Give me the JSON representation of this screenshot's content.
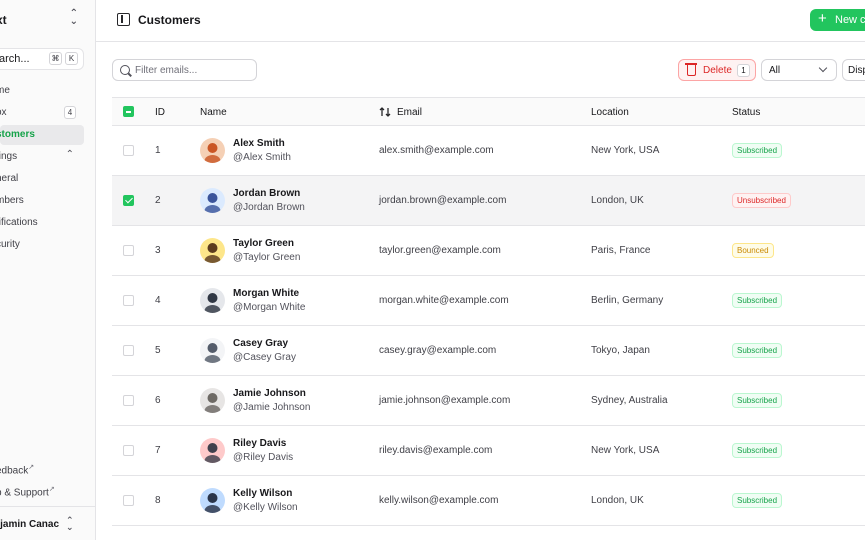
{
  "sidebar": {
    "team": "xt",
    "search": {
      "label": "arch...",
      "keys": [
        "⌘",
        "K"
      ]
    },
    "items": [
      {
        "label": "me"
      },
      {
        "label": "ox",
        "badge": "4"
      },
      {
        "label": "stomers"
      },
      {
        "label": "tings"
      },
      {
        "label": "neral"
      },
      {
        "label": "mbers"
      },
      {
        "label": "tifications"
      },
      {
        "label": "curity"
      }
    ],
    "footer": [
      {
        "label": "edback"
      },
      {
        "label": "p & Support"
      }
    ],
    "user": "njamin Canac"
  },
  "header": {
    "title": "Customers",
    "new_button": "New cu"
  },
  "toolbar": {
    "filter_placeholder": "Filter emails...",
    "delete_label": "Delete",
    "delete_count": "1",
    "select_value": "All",
    "display_label": "Disp"
  },
  "table": {
    "columns": [
      "ID",
      "Name",
      "Email",
      "Location",
      "Status"
    ],
    "rows": [
      {
        "id": "1",
        "name": "Alex Smith",
        "username": "@Alex Smith",
        "email": "alex.smith@example.com",
        "location": "New York, USA",
        "status": "Subscribed",
        "selected": false
      },
      {
        "id": "2",
        "name": "Jordan Brown",
        "username": "@Jordan Brown",
        "email": "jordan.brown@example.com",
        "location": "London, UK",
        "status": "Unsubscribed",
        "selected": true
      },
      {
        "id": "3",
        "name": "Taylor Green",
        "username": "@Taylor Green",
        "email": "taylor.green@example.com",
        "location": "Paris, France",
        "status": "Bounced",
        "selected": false
      },
      {
        "id": "4",
        "name": "Morgan White",
        "username": "@Morgan White",
        "email": "morgan.white@example.com",
        "location": "Berlin, Germany",
        "status": "Subscribed",
        "selected": false
      },
      {
        "id": "5",
        "name": "Casey Gray",
        "username": "@Casey Gray",
        "email": "casey.gray@example.com",
        "location": "Tokyo, Japan",
        "status": "Subscribed",
        "selected": false
      },
      {
        "id": "6",
        "name": "Jamie Johnson",
        "username": "@Jamie Johnson",
        "email": "jamie.johnson@example.com",
        "location": "Sydney, Australia",
        "status": "Subscribed",
        "selected": false
      },
      {
        "id": "7",
        "name": "Riley Davis",
        "username": "@Riley Davis",
        "email": "riley.davis@example.com",
        "location": "New York, USA",
        "status": "Subscribed",
        "selected": false
      },
      {
        "id": "8",
        "name": "Kelly Wilson",
        "username": "@Kelly Wilson",
        "email": "kelly.wilson@example.com",
        "location": "London, UK",
        "status": "Subscribed",
        "selected": false
      }
    ]
  },
  "colors": {
    "accent": "#22c55e",
    "danger": "#dc2626",
    "warning": "#ca8a04"
  }
}
